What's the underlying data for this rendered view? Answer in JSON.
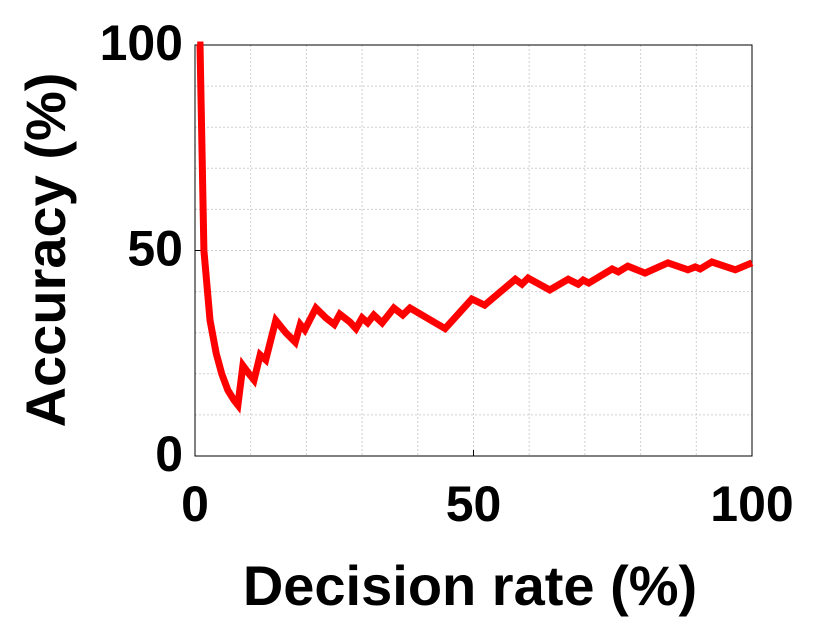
{
  "chart_data": {
    "type": "line",
    "xlabel": "Decision rate (%)",
    "ylabel": "Accuracy (%)",
    "x": [
      0.4,
      0.9,
      1.6,
      2.7,
      3.8,
      4.8,
      5.9,
      7,
      7.7,
      8.6,
      9.7,
      10.6,
      11.7,
      12.7,
      14.5,
      16.3,
      18,
      18.9,
      19.7,
      21.7,
      23.5,
      25,
      26,
      27.8,
      28.9,
      30,
      31,
      32.1,
      33.6,
      35.7,
      37.3,
      38.6,
      44.9,
      49.7,
      52,
      57.5,
      58.7,
      59.8,
      63.7,
      67,
      68.8,
      69.7,
      70.7,
      74.9,
      76,
      77.7,
      80.8,
      84.9,
      88.5,
      89.8,
      90.7,
      92.8,
      97,
      100
    ],
    "series": [
      {
        "color": "#ff0000",
        "values": [
          100,
          100,
          50,
          33,
          25,
          20,
          16,
          13.6,
          12.4,
          22,
          20,
          18.5,
          24.6,
          23.4,
          33,
          30,
          27.7,
          32,
          30.7,
          36,
          33.6,
          32,
          34.5,
          32.6,
          31,
          33.6,
          32.4,
          34.3,
          32.4,
          36,
          34.3,
          36,
          31,
          38.2,
          36.7,
          43,
          41.8,
          43.3,
          40.4,
          43,
          41.8,
          42.8,
          42.1,
          45.5,
          44.8,
          46.2,
          44.5,
          47,
          45.3,
          46,
          45.5,
          47.2,
          45.3,
          47
        ]
      }
    ],
    "xlim": [
      0,
      100
    ],
    "ylim": [
      0,
      100
    ],
    "xticks": [
      0,
      50,
      100
    ],
    "yticks": [
      0,
      50,
      100
    ],
    "minor_xticks": [
      10,
      20,
      30,
      40,
      60,
      70,
      80,
      90
    ],
    "minor_yticks": [
      10,
      20,
      30,
      40,
      60,
      70,
      80,
      90
    ],
    "grid": true
  }
}
